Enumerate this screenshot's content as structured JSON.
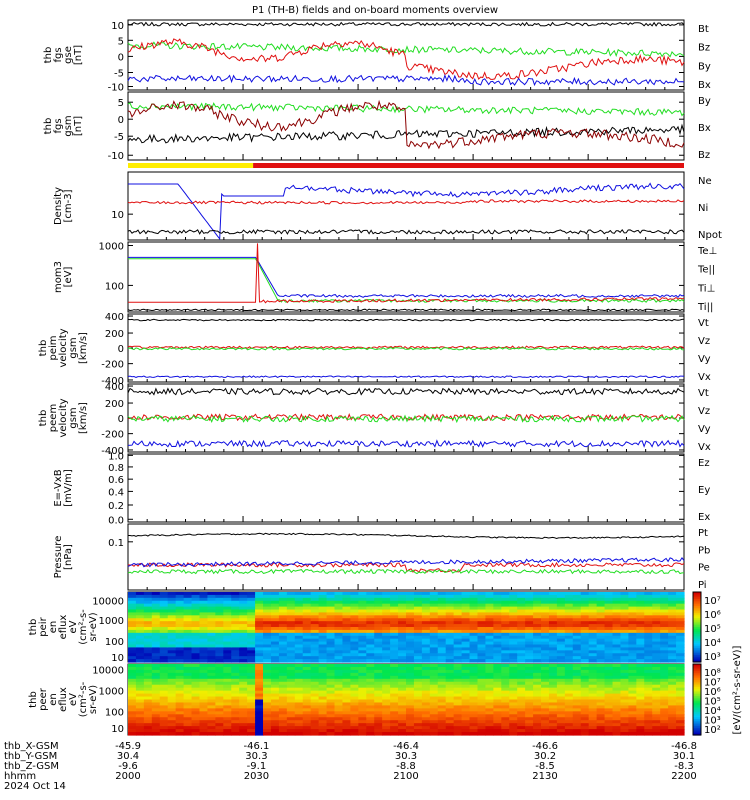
{
  "title": "P1 (TH-B) fields and on-board moments overview",
  "colors": {
    "black": "#000000",
    "red": "#e01010",
    "green": "#22dd22",
    "blue": "#1010e0",
    "darkred": "#8b0000",
    "yellow": "#ffee00"
  },
  "chart_data": [
    {
      "type": "line",
      "ylabel": "thb fgs gse [nT]",
      "yticks": [
        "10",
        "5",
        "0",
        "-5",
        "-10"
      ],
      "series": [
        {
          "name": "Bt",
          "color": "black"
        },
        {
          "name": "Bz",
          "color": "red"
        },
        {
          "name": "By",
          "color": "green"
        },
        {
          "name": "Bx",
          "color": "blue"
        }
      ]
    },
    {
      "type": "line",
      "ylabel": "thb fgs gsm [nT]",
      "yticks": [
        "5",
        "0",
        "-5",
        "-10"
      ],
      "series": [
        {
          "name": "By",
          "color": "green"
        },
        {
          "name": "Bx",
          "color": "black"
        },
        {
          "name": "Bz",
          "color": "darkred"
        }
      ]
    },
    {
      "type": "line",
      "ylabel": "Density [cm-3]",
      "yticks": [
        "10"
      ],
      "series": [
        {
          "name": "Ne",
          "color": "red"
        },
        {
          "name": "Ni",
          "color": "black"
        },
        {
          "name": "Npot",
          "color": "blue"
        }
      ]
    },
    {
      "type": "line",
      "ylabel": "mom3 [eV]",
      "yticks": [
        "1000",
        "100"
      ],
      "series": [
        {
          "name": "Te⊥",
          "color": "red"
        },
        {
          "name": "Te||",
          "color": "black"
        },
        {
          "name": "Ti⊥",
          "color": "blue"
        },
        {
          "name": "Ti||",
          "color": "green"
        }
      ]
    },
    {
      "type": "line",
      "ylabel": "thb peim velocity gsm [km/s]",
      "yticks": [
        "400",
        "200",
        "0",
        "-200",
        "-400"
      ],
      "series": [
        {
          "name": "Vt",
          "color": "black"
        },
        {
          "name": "Vz",
          "color": "red"
        },
        {
          "name": "Vy",
          "color": "green"
        },
        {
          "name": "Vx",
          "color": "blue"
        }
      ]
    },
    {
      "type": "line",
      "ylabel": "thb peem velocity gsm [km/s]",
      "yticks": [
        "400",
        "200",
        "0",
        "-200",
        "-400"
      ],
      "series": [
        {
          "name": "Vt",
          "color": "black"
        },
        {
          "name": "Vz",
          "color": "red"
        },
        {
          "name": "Vy",
          "color": "green"
        },
        {
          "name": "Vx",
          "color": "blue"
        }
      ]
    },
    {
      "type": "line",
      "ylabel": "E=-VxB [mV/m]",
      "yticks": [
        "1.0",
        "0.8",
        "0.6",
        "0.4",
        "0.2",
        "0.0"
      ],
      "series": [
        {
          "name": "Ez",
          "color": "red"
        },
        {
          "name": "Ey",
          "color": "green"
        },
        {
          "name": "Ex",
          "color": "blue"
        }
      ]
    },
    {
      "type": "line",
      "ylabel": "Pressure [nPa]",
      "yticks": [
        "0.1"
      ],
      "series": [
        {
          "name": "Pt",
          "color": "black"
        },
        {
          "name": "Pb",
          "color": "red"
        },
        {
          "name": "Pe",
          "color": "green"
        },
        {
          "name": "Pi",
          "color": "blue"
        }
      ]
    },
    {
      "type": "heatmap",
      "ylabel": "thb peir en eflux eV (cm^2-s-sr-eV)",
      "yticks": [
        "10000",
        "1000",
        "100",
        "10"
      ]
    },
    {
      "type": "heatmap",
      "ylabel": "thb peer en eflux eV (cm^2-s-sr-eV)",
      "yticks": [
        "10000",
        "1000",
        "100",
        "10"
      ]
    }
  ],
  "xaxis": {
    "rows": [
      {
        "label": "thb_X-GSM",
        "values": [
          "-45.9",
          "-46.1",
          "-46.4",
          "-46.6",
          "-46.8"
        ]
      },
      {
        "label": "thb_Y-GSM",
        "values": [
          "30.4",
          "30.3",
          "30.3",
          "30.2",
          "30.1"
        ]
      },
      {
        "label": "thb_Z-GSM",
        "values": [
          "-9.6",
          "-9.1",
          "-8.8",
          "-8.5",
          "-8.3"
        ]
      },
      {
        "label": "hhmm",
        "values": [
          "2000",
          "2030",
          "2100",
          "2130",
          "2200"
        ]
      }
    ],
    "date": "2024 Oct 14"
  },
  "colorbar": {
    "ticks": [
      "10⁷",
      "10⁶",
      "10⁵",
      "10⁴",
      "10³"
    ],
    "ticks2": [
      "10⁸",
      "10⁷",
      "10⁶",
      "10⁵",
      "10⁴",
      "10³",
      "10²"
    ],
    "label": "[eV/(cm²-s-sr-eV)]"
  }
}
